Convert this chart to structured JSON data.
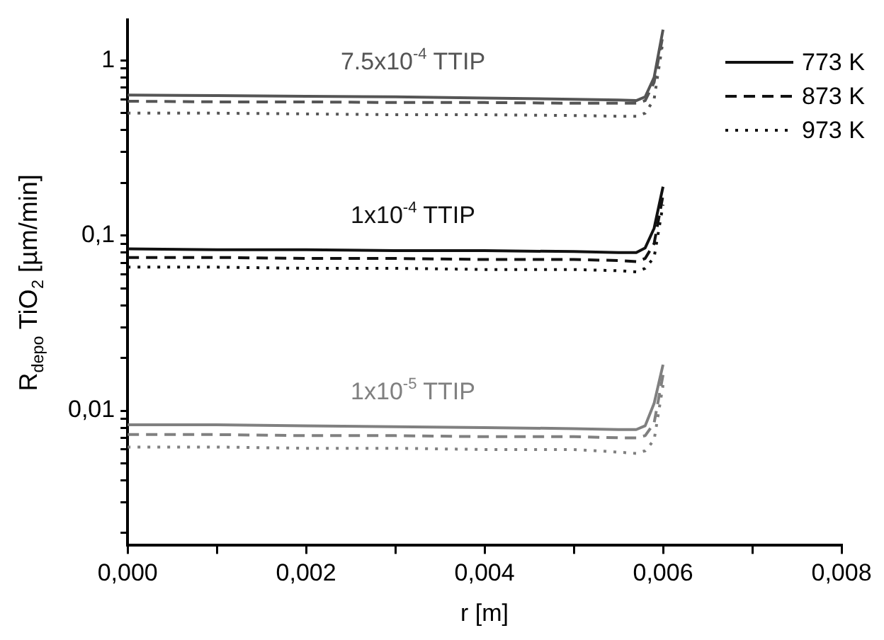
{
  "chart_data": {
    "type": "line",
    "xlabel": "r [m]",
    "ylabel": "R$_{depo}$ TiO$_{2}$ [µm/min]",
    "log": "y",
    "xlim": [
      0,
      0.008
    ],
    "ylim": [
      0.0017,
      1.7
    ],
    "xticks": [
      {
        "value": 0,
        "label": "0,000"
      },
      {
        "value": 0.001,
        "label": null
      },
      {
        "value": 0.002,
        "label": "0,002"
      },
      {
        "value": 0.003,
        "label": null
      },
      {
        "value": 0.004,
        "label": "0,004"
      },
      {
        "value": 0.005,
        "label": null
      },
      {
        "value": 0.006,
        "label": "0,006"
      },
      {
        "value": 0.007,
        "label": null
      },
      {
        "value": 0.008,
        "label": "0,008"
      }
    ],
    "yticks": [
      {
        "value": 0.002,
        "label": null
      },
      {
        "value": 0.003,
        "label": null
      },
      {
        "value": 0.004,
        "label": null
      },
      {
        "value": 0.005,
        "label": null
      },
      {
        "value": 0.006,
        "label": null
      },
      {
        "value": 0.007,
        "label": null
      },
      {
        "value": 0.008,
        "label": null
      },
      {
        "value": 0.009,
        "label": null
      },
      {
        "value": 0.01,
        "label": "0,01"
      },
      {
        "value": 0.02,
        "label": null
      },
      {
        "value": 0.03,
        "label": null
      },
      {
        "value": 0.04,
        "label": null
      },
      {
        "value": 0.05,
        "label": null
      },
      {
        "value": 0.06,
        "label": null
      },
      {
        "value": 0.07,
        "label": null
      },
      {
        "value": 0.08,
        "label": null
      },
      {
        "value": 0.09,
        "label": null
      },
      {
        "value": 0.1,
        "label": "0,1"
      },
      {
        "value": 0.2,
        "label": null
      },
      {
        "value": 0.3,
        "label": null
      },
      {
        "value": 0.4,
        "label": null
      },
      {
        "value": 0.5,
        "label": null
      },
      {
        "value": 0.6,
        "label": null
      },
      {
        "value": 0.7,
        "label": null
      },
      {
        "value": 0.8,
        "label": null
      },
      {
        "value": 0.9,
        "label": null
      },
      {
        "value": 1,
        "label": "1"
      }
    ],
    "grid": false,
    "legend": "top right",
    "marker": "none",
    "x": [
      0,
      0.001,
      0.002,
      0.003,
      0.004,
      0.005,
      0.0055,
      0.0057,
      0.0058,
      0.0059,
      0.006
    ],
    "series": [
      {
        "color": "#555555",
        "line_style": "solid",
        "values": [
          0.635,
          0.63,
          0.625,
          0.62,
          0.61,
          0.6,
          0.595,
          0.59,
          0.62,
          0.8,
          1.5
        ]
      },
      {
        "color": "#555555",
        "line_style": "dashed",
        "values": [
          0.585,
          0.58,
          0.58,
          0.575,
          0.575,
          0.57,
          0.57,
          0.57,
          0.59,
          0.75,
          1.4
        ]
      },
      {
        "color": "#555555",
        "line_style": "dotted",
        "values": [
          0.5,
          0.5,
          0.495,
          0.49,
          0.49,
          0.485,
          0.48,
          0.48,
          0.5,
          0.6,
          1.3
        ]
      },
      {
        "name": "773 K",
        "color": "#111111",
        "line_style": "solid",
        "values": [
          0.084,
          0.083,
          0.083,
          0.082,
          0.082,
          0.081,
          0.08,
          0.08,
          0.085,
          0.11,
          0.19
        ]
      },
      {
        "name": "873 K",
        "color": "#111111",
        "line_style": "dashed",
        "values": [
          0.075,
          0.075,
          0.074,
          0.074,
          0.073,
          0.073,
          0.072,
          0.071,
          0.074,
          0.09,
          0.17
        ]
      },
      {
        "name": "973 K",
        "color": "#111111",
        "line_style": "dotted",
        "values": [
          0.066,
          0.066,
          0.065,
          0.065,
          0.064,
          0.064,
          0.063,
          0.062,
          0.065,
          0.075,
          0.15
        ]
      },
      {
        "color": "#808080",
        "line_style": "solid",
        "values": [
          0.0083,
          0.0083,
          0.0082,
          0.0081,
          0.008,
          0.0079,
          0.0078,
          0.0078,
          0.0082,
          0.011,
          0.0183
        ]
      },
      {
        "color": "#808080",
        "line_style": "dashed",
        "values": [
          0.0073,
          0.0073,
          0.0072,
          0.0072,
          0.0071,
          0.0071,
          0.007,
          0.007,
          0.0072,
          0.0085,
          0.016
        ]
      },
      {
        "color": "#808080",
        "line_style": "dotted",
        "values": [
          0.0062,
          0.0062,
          0.0061,
          0.0061,
          0.006,
          0.006,
          0.0058,
          0.0057,
          0.0059,
          0.0068,
          0.014
        ]
      }
    ],
    "annotations": [
      "7.5x10$^{-4}$ TTIP",
      "1x10$^{-4}$ TTIP",
      "1x10$^{-5}$ TTIP"
    ]
  }
}
